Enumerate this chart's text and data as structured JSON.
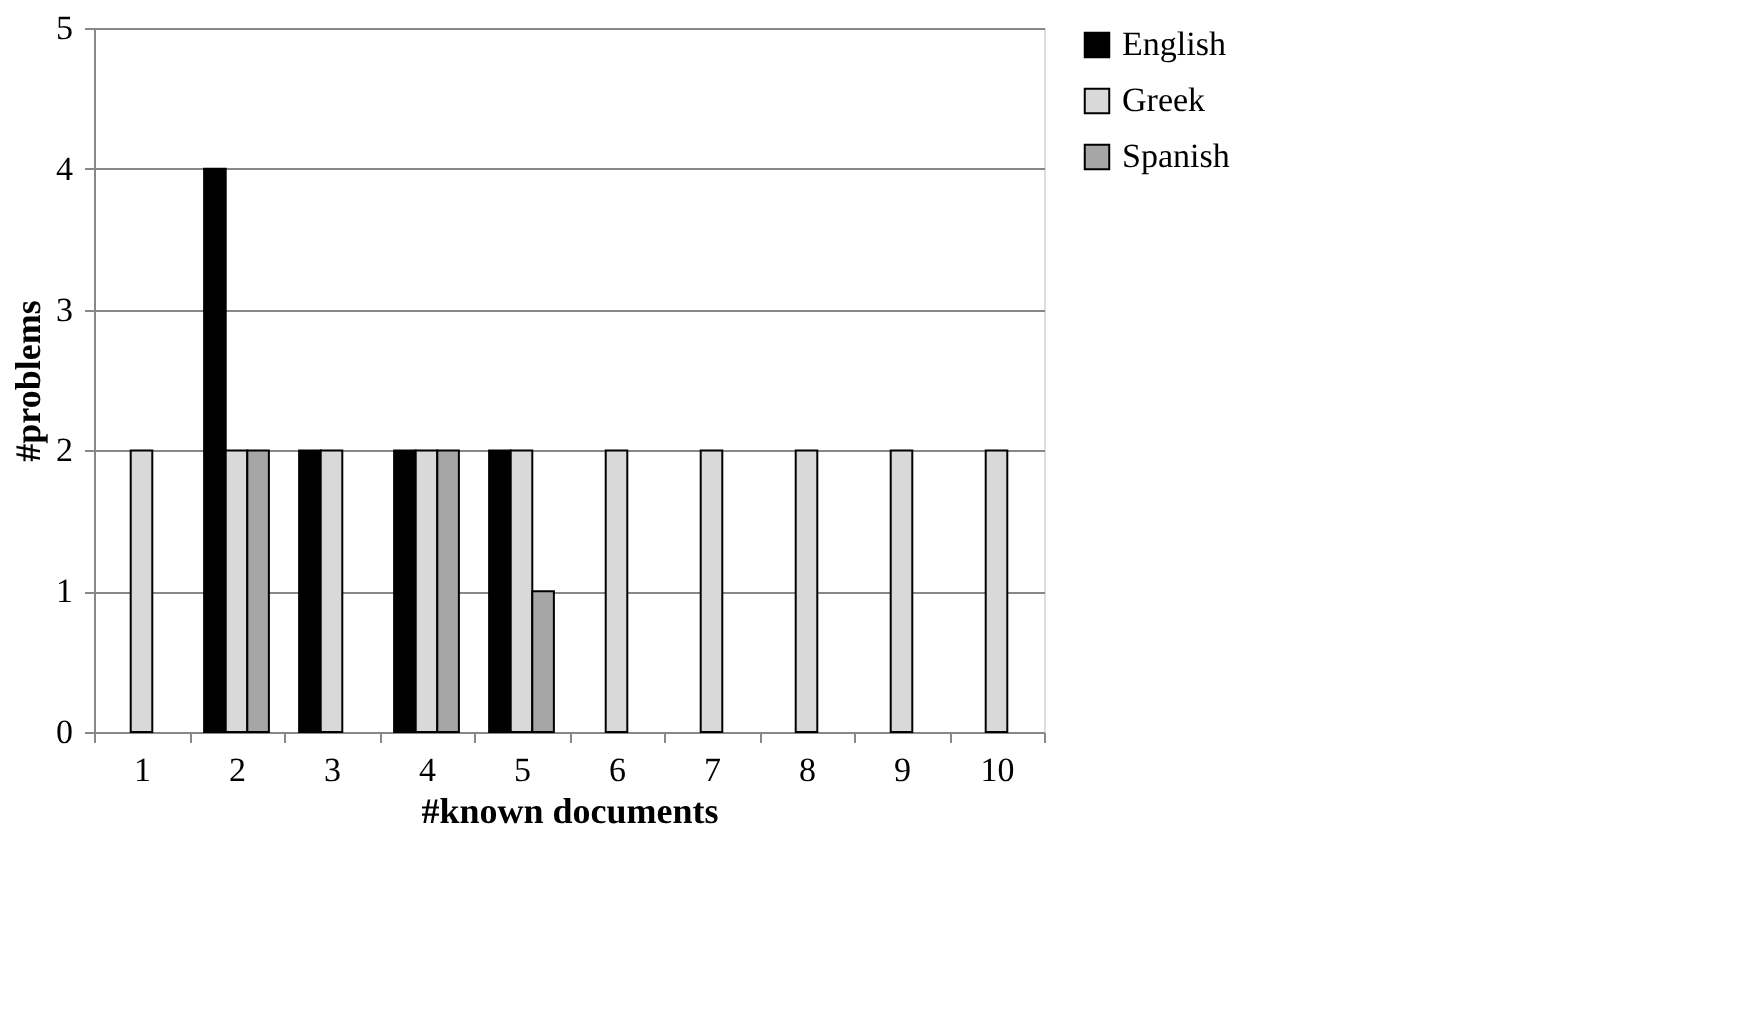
{
  "chart_data": {
    "type": "bar",
    "xlabel": "#known documents",
    "ylabel": "#problems",
    "categories": [
      "1",
      "2",
      "3",
      "4",
      "5",
      "6",
      "7",
      "8",
      "9",
      "10"
    ],
    "series": [
      {
        "name": "English",
        "color": "#000000",
        "values": [
          null,
          4,
          2,
          2,
          2,
          null,
          null,
          null,
          null,
          null
        ]
      },
      {
        "name": "Greek",
        "color": "#d9d9d9",
        "values": [
          2,
          2,
          2,
          2,
          2,
          2,
          2,
          2,
          2,
          2
        ]
      },
      {
        "name": "Spanish",
        "color": "#a6a6a6",
        "values": [
          null,
          2,
          null,
          2,
          1,
          null,
          null,
          null,
          null,
          null
        ]
      }
    ],
    "ylim": [
      0,
      5
    ],
    "yticks": [
      0,
      1,
      2,
      3,
      4,
      5
    ],
    "grid": "y",
    "legend": "right"
  }
}
